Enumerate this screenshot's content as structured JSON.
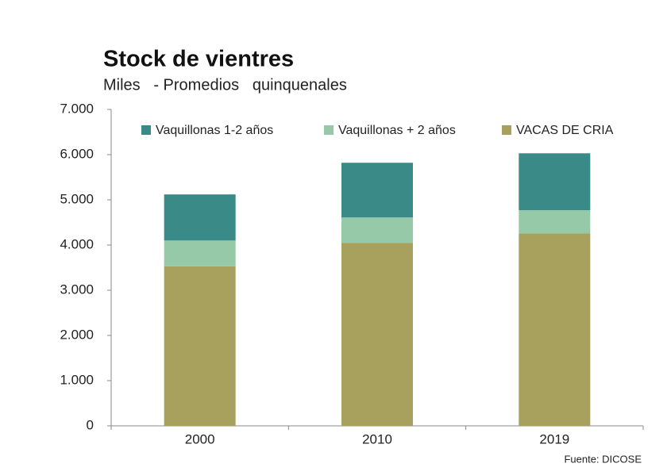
{
  "chart_data": {
    "type": "stacked_bar",
    "title": "Stock de vientres",
    "subtitle": "Miles   - Promedios   quinquenales",
    "source": "Fuente: DICOSE",
    "categories": [
      "2000",
      "2010",
      "2019"
    ],
    "series": [
      {
        "name": "VACAS DE CRIA",
        "color": "#a8a15e",
        "values": [
          3530,
          4050,
          4260
        ]
      },
      {
        "name": "Vaquillonas + 2 años",
        "color": "#95c9a8",
        "values": [
          570,
          560,
          510
        ]
      },
      {
        "name": "Vaquillonas 1-2 años",
        "color": "#3a8a87",
        "values": [
          1020,
          1210,
          1260
        ]
      }
    ],
    "ylim": [
      0,
      7000
    ],
    "yticks": [
      0,
      {
        "value": 1000,
        "label": "1.000"
      },
      {
        "value": 2000,
        "label": "2.000"
      },
      {
        "value": 3000,
        "label": "3.000"
      },
      {
        "value": 4000,
        "label": "4.000"
      },
      {
        "value": 5000,
        "label": "5.000"
      },
      {
        "value": 6000,
        "label": "6.000"
      },
      {
        "value": 7000,
        "label": "7.000"
      }
    ],
    "grid": false
  }
}
